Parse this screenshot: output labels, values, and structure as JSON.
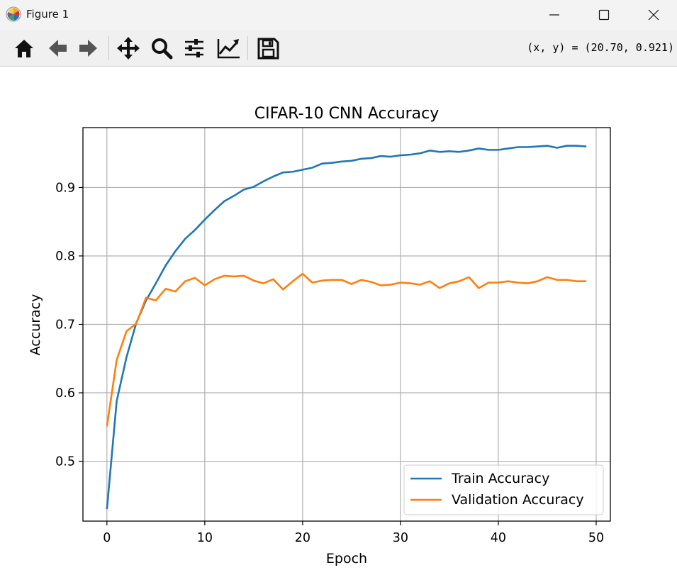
{
  "window": {
    "title": "Figure 1",
    "icon": "matplotlib-logo-icon",
    "controls": [
      "minimize-icon",
      "maximize-icon",
      "close-icon"
    ]
  },
  "toolbar": {
    "buttons": [
      {
        "name": "home-icon"
      },
      {
        "name": "back-arrow-icon"
      },
      {
        "name": "forward-arrow-icon"
      },
      {
        "name": "pan-move-icon"
      },
      {
        "name": "zoom-magnifier-icon"
      },
      {
        "name": "configure-subplots-icon"
      },
      {
        "name": "edit-axis-icon"
      },
      {
        "name": "save-floppy-icon"
      }
    ],
    "coords": "(x, y) = (20.70, 0.921)"
  },
  "chart_data": {
    "type": "line",
    "title": "CIFAR-10 CNN Accuracy",
    "xlabel": "Epoch",
    "ylabel": "Accuracy",
    "xlim": [
      -2.45,
      51.45
    ],
    "ylim": [
      0.4125,
      0.9875
    ],
    "xticks": [
      0,
      10,
      20,
      30,
      40,
      50
    ],
    "yticks": [
      0.5,
      0.6,
      0.7,
      0.8,
      0.9
    ],
    "grid": true,
    "legend": "lower right",
    "x": [
      0,
      1,
      2,
      3,
      4,
      5,
      6,
      7,
      8,
      9,
      10,
      11,
      12,
      13,
      14,
      15,
      16,
      17,
      18,
      19,
      20,
      21,
      22,
      23,
      24,
      25,
      26,
      27,
      28,
      29,
      30,
      31,
      32,
      33,
      34,
      35,
      36,
      37,
      38,
      39,
      40,
      41,
      42,
      43,
      44,
      45,
      46,
      47,
      48,
      49
    ],
    "series": [
      {
        "name": "Train Accuracy",
        "color": "#1f77b4",
        "values": [
          0.43,
          0.588,
          0.652,
          0.702,
          0.735,
          0.76,
          0.786,
          0.807,
          0.825,
          0.838,
          0.853,
          0.867,
          0.88,
          0.888,
          0.897,
          0.901,
          0.909,
          0.916,
          0.922,
          0.923,
          0.926,
          0.929,
          0.935,
          0.936,
          0.938,
          0.939,
          0.942,
          0.943,
          0.946,
          0.945,
          0.947,
          0.948,
          0.95,
          0.954,
          0.952,
          0.953,
          0.952,
          0.954,
          0.957,
          0.955,
          0.955,
          0.957,
          0.959,
          0.959,
          0.96,
          0.961,
          0.958,
          0.961,
          0.961,
          0.96
        ]
      },
      {
        "name": "Validation Accuracy",
        "color": "#ff7f0e",
        "values": [
          0.551,
          0.648,
          0.69,
          0.701,
          0.739,
          0.735,
          0.752,
          0.748,
          0.763,
          0.768,
          0.757,
          0.766,
          0.771,
          0.77,
          0.771,
          0.764,
          0.76,
          0.766,
          0.751,
          0.763,
          0.774,
          0.761,
          0.764,
          0.765,
          0.765,
          0.759,
          0.765,
          0.762,
          0.757,
          0.758,
          0.761,
          0.76,
          0.758,
          0.763,
          0.753,
          0.76,
          0.763,
          0.769,
          0.753,
          0.761,
          0.761,
          0.763,
          0.761,
          0.76,
          0.763,
          0.769,
          0.765,
          0.765,
          0.763,
          0.763
        ]
      }
    ]
  }
}
